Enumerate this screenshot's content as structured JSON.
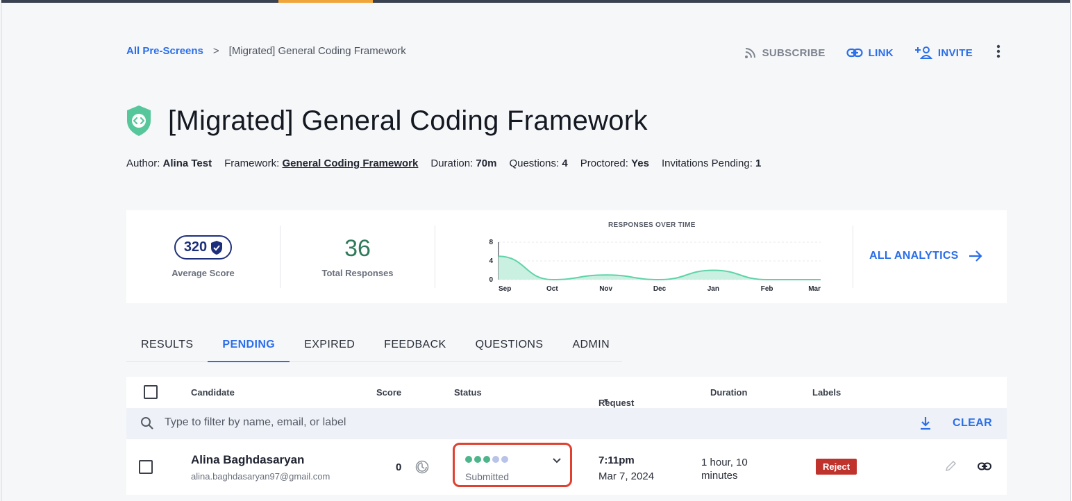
{
  "breadcrumb": {
    "root": "All Pre-Screens",
    "separator": ">",
    "current": "[Migrated] General Coding Framework"
  },
  "actions": {
    "subscribe": "SUBSCRIBE",
    "link": "LINK",
    "invite": "INVITE"
  },
  "page": {
    "title": "[Migrated] General Coding Framework"
  },
  "meta": {
    "author_label": "Author:",
    "author": "Alina Test",
    "framework_label": "Framework:",
    "framework": "General Coding Framework",
    "duration_label": "Duration:",
    "duration": "70m",
    "questions_label": "Questions:",
    "questions": "4",
    "proctored_label": "Proctored:",
    "proctored": "Yes",
    "pending_label": "Invitations Pending:",
    "pending": "1"
  },
  "stats": {
    "average_score": "320",
    "average_score_label": "Average Score",
    "total_responses": "36",
    "total_responses_label": "Total Responses",
    "all_analytics": "ALL ANALYTICS"
  },
  "chart_data": {
    "type": "area",
    "title": "RESPONSES OVER TIME",
    "categories": [
      "Sep",
      "Oct",
      "Nov",
      "Dec",
      "Jan",
      "Feb",
      "Mar"
    ],
    "values": [
      5,
      0,
      1,
      0,
      2,
      0,
      0
    ],
    "yticks": [
      0,
      4,
      8
    ],
    "ylim": [
      0,
      8
    ],
    "color": "#5fd3a8"
  },
  "tabs": [
    "RESULTS",
    "PENDING",
    "EXPIRED",
    "FEEDBACK",
    "QUESTIONS",
    "ADMIN"
  ],
  "active_tab": "PENDING",
  "table": {
    "headers": {
      "candidate": "Candidate",
      "score": "Score",
      "status": "Status",
      "request_date": "Request Date",
      "duration": "Duration",
      "labels": "Labels"
    },
    "filter_placeholder": "Type to filter by name, email, or label",
    "clear": "CLEAR",
    "rows": [
      {
        "name": "Alina Baghdasaryan",
        "email": "alina.baghdasaryan97@gmail.com",
        "score": "0",
        "status": "Submitted",
        "status_steps_done": 3,
        "status_steps_total": 5,
        "time": "7:11pm",
        "date": "Mar 7, 2024",
        "duration": "1 hour, 10 minutes",
        "label": "Reject"
      }
    ]
  },
  "colors": {
    "accent": "#2a6ee8",
    "status_done": "#4cb58a",
    "status_todo": "#b9c2e8",
    "reject": "#c0322c",
    "highlight": "#e0402f"
  }
}
